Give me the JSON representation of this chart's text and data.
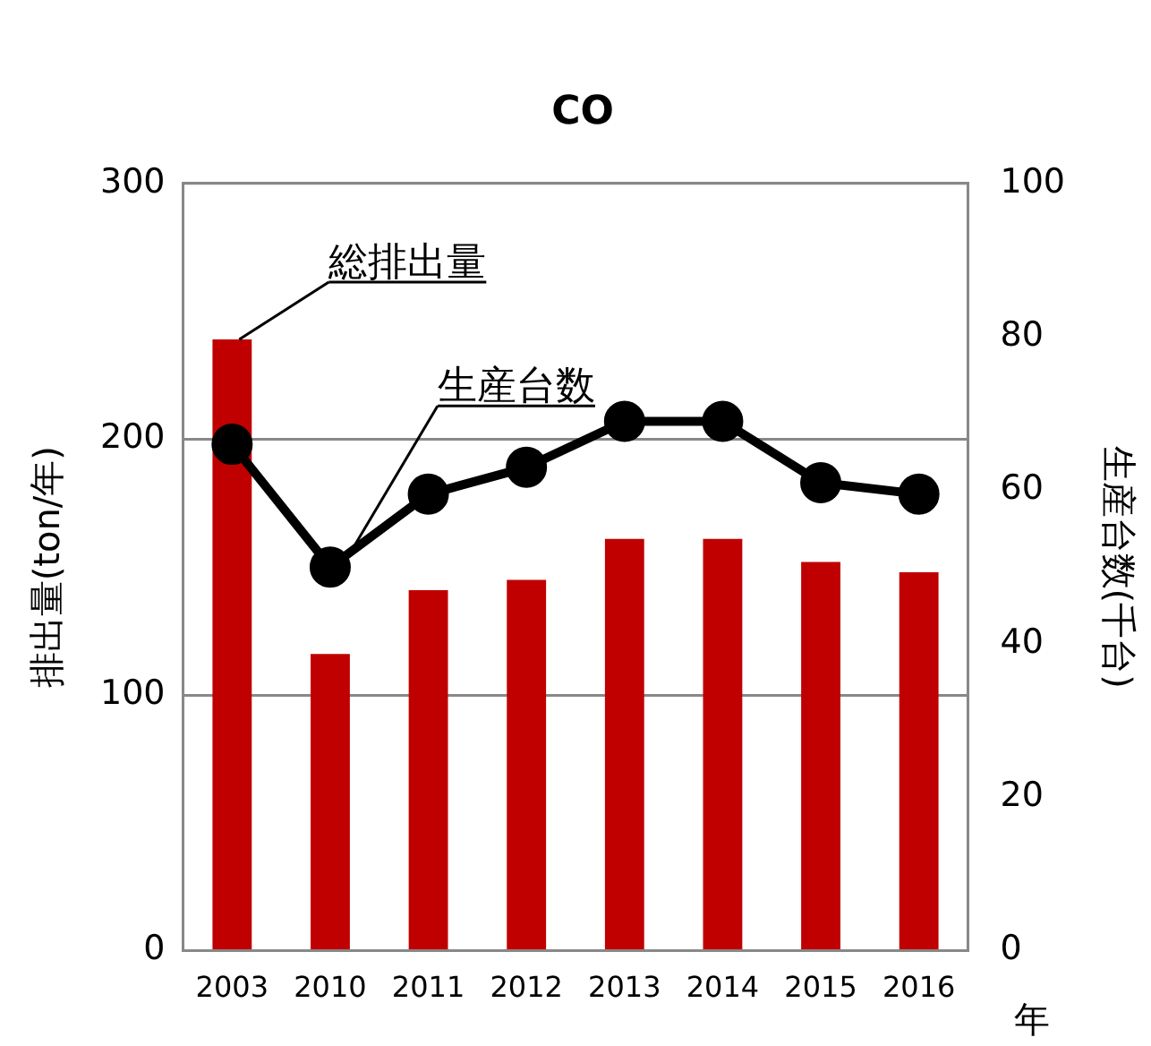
{
  "chart_data": {
    "type": "bar",
    "title": "CO",
    "xlabel": "年",
    "ylabel": "排出量(ton/年)",
    "y2label": "生産台数(千台)",
    "categories": [
      "2003",
      "2010",
      "2011",
      "2012",
      "2013",
      "2014",
      "2015",
      "2016"
    ],
    "series": [
      {
        "name": "総排出量",
        "color": "#c00000",
        "values": [
          239,
          116,
          141,
          145,
          161,
          161,
          152,
          148
        ]
      },
      {
        "name": "生産台数",
        "type": "line",
        "axis": "y2",
        "color": "#000000",
        "values": [
          66,
          50,
          59.5,
          63,
          69,
          69,
          61,
          59.5
        ]
      }
    ],
    "ylim": [
      0,
      300
    ],
    "yticks": [
      0,
      100,
      200,
      300
    ],
    "y2lim": [
      0,
      100
    ],
    "y2ticks": [
      0,
      20,
      40,
      60,
      80,
      100
    ],
    "grid": "y",
    "legend": false,
    "marker": "circle",
    "line_style": "solid"
  }
}
